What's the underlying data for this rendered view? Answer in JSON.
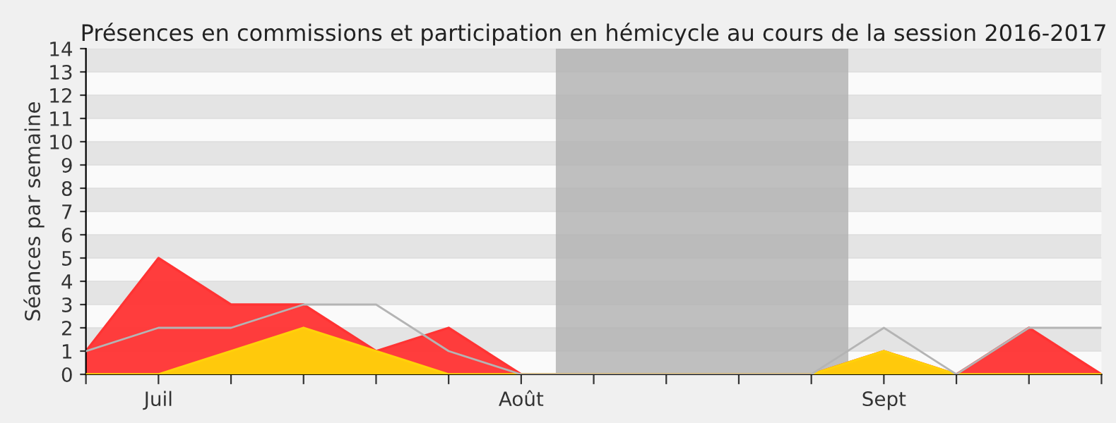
{
  "chart_data": {
    "type": "area",
    "title": "Présences en commissions et participation en hémicycle au cours de la session 2016-2017",
    "ylabel": "Séances par semaine",
    "categories": [
      null,
      "Juil",
      null,
      null,
      null,
      null,
      "Août",
      null,
      null,
      null,
      null,
      "Sept",
      null,
      null,
      null
    ],
    "series": [
      {
        "color": "#ff3333",
        "values": [
          1,
          5,
          3,
          3,
          1,
          2,
          0,
          0,
          0,
          0,
          0,
          1,
          0,
          2,
          0
        ]
      },
      {
        "color": "#ffd10a",
        "values": [
          0,
          0,
          1,
          2,
          1,
          0,
          0,
          0,
          0,
          0,
          0,
          1,
          0,
          0,
          0
        ]
      },
      {
        "type": "line",
        "color": "#b4b4b4",
        "values": [
          1,
          2,
          2,
          3,
          3,
          1,
          0,
          0,
          0,
          0,
          0,
          2,
          0,
          2,
          2
        ]
      }
    ],
    "ylim": [
      0,
      14
    ],
    "yticks": [
      0,
      1,
      2,
      3,
      4,
      5,
      6,
      7,
      8,
      9,
      10,
      11,
      12,
      13,
      14
    ],
    "grid": "y"
  }
}
